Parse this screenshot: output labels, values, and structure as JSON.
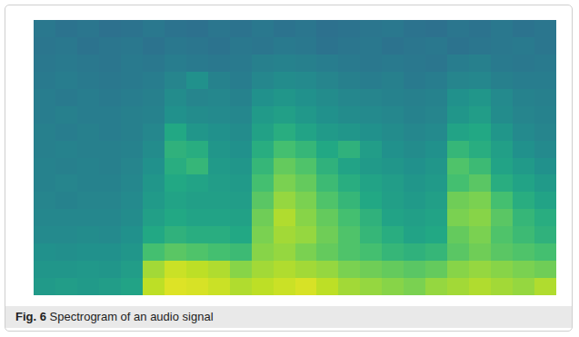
{
  "chart_data": {
    "type": "heatmap",
    "figure_label": "Fig. 6",
    "title": "Spectrogram of an audio signal",
    "tick_labels": false,
    "zlim": [
      0,
      1
    ],
    "cells": [
      [
        0.4,
        0.38,
        0.39,
        0.37,
        0.38,
        0.4,
        0.38,
        0.37,
        0.39,
        0.38,
        0.4,
        0.38,
        0.39,
        0.37,
        0.38,
        0.39,
        0.4,
        0.38,
        0.37,
        0.39,
        0.38,
        0.4,
        0.38,
        0.39
      ],
      [
        0.39,
        0.4,
        0.38,
        0.39,
        0.4,
        0.38,
        0.4,
        0.39,
        0.38,
        0.4,
        0.39,
        0.41,
        0.4,
        0.38,
        0.39,
        0.4,
        0.38,
        0.39,
        0.4,
        0.38,
        0.39,
        0.4,
        0.41,
        0.39
      ],
      [
        0.4,
        0.41,
        0.4,
        0.39,
        0.41,
        0.4,
        0.42,
        0.41,
        0.4,
        0.41,
        0.43,
        0.44,
        0.43,
        0.42,
        0.41,
        0.4,
        0.41,
        0.4,
        0.39,
        0.42,
        0.43,
        0.41,
        0.4,
        0.41
      ],
      [
        0.41,
        0.42,
        0.41,
        0.4,
        0.41,
        0.42,
        0.45,
        0.5,
        0.44,
        0.42,
        0.46,
        0.48,
        0.47,
        0.45,
        0.43,
        0.42,
        0.43,
        0.41,
        0.42,
        0.45,
        0.46,
        0.43,
        0.42,
        0.42
      ],
      [
        0.42,
        0.41,
        0.42,
        0.41,
        0.42,
        0.43,
        0.48,
        0.45,
        0.46,
        0.44,
        0.5,
        0.52,
        0.5,
        0.48,
        0.46,
        0.45,
        0.44,
        0.43,
        0.44,
        0.5,
        0.52,
        0.47,
        0.44,
        0.43
      ],
      [
        0.42,
        0.43,
        0.42,
        0.42,
        0.43,
        0.44,
        0.5,
        0.48,
        0.47,
        0.46,
        0.54,
        0.56,
        0.53,
        0.5,
        0.48,
        0.47,
        0.46,
        0.44,
        0.45,
        0.52,
        0.55,
        0.48,
        0.45,
        0.44
      ],
      [
        0.43,
        0.42,
        0.43,
        0.42,
        0.43,
        0.46,
        0.6,
        0.52,
        0.5,
        0.48,
        0.57,
        0.62,
        0.58,
        0.54,
        0.52,
        0.5,
        0.48,
        0.46,
        0.47,
        0.58,
        0.6,
        0.52,
        0.47,
        0.45
      ],
      [
        0.43,
        0.44,
        0.43,
        0.43,
        0.44,
        0.48,
        0.64,
        0.62,
        0.52,
        0.5,
        0.62,
        0.7,
        0.66,
        0.6,
        0.64,
        0.55,
        0.5,
        0.48,
        0.5,
        0.66,
        0.62,
        0.56,
        0.5,
        0.47
      ],
      [
        0.44,
        0.43,
        0.44,
        0.43,
        0.45,
        0.5,
        0.62,
        0.66,
        0.54,
        0.52,
        0.66,
        0.76,
        0.72,
        0.64,
        0.58,
        0.54,
        0.52,
        0.5,
        0.52,
        0.72,
        0.68,
        0.58,
        0.54,
        0.5
      ],
      [
        0.44,
        0.45,
        0.44,
        0.44,
        0.46,
        0.52,
        0.6,
        0.58,
        0.55,
        0.54,
        0.7,
        0.8,
        0.76,
        0.68,
        0.62,
        0.58,
        0.55,
        0.52,
        0.54,
        0.7,
        0.74,
        0.62,
        0.58,
        0.54
      ],
      [
        0.45,
        0.44,
        0.45,
        0.45,
        0.47,
        0.54,
        0.58,
        0.56,
        0.56,
        0.55,
        0.74,
        0.84,
        0.8,
        0.72,
        0.66,
        0.6,
        0.56,
        0.54,
        0.56,
        0.78,
        0.8,
        0.7,
        0.62,
        0.58
      ],
      [
        0.46,
        0.46,
        0.46,
        0.46,
        0.48,
        0.56,
        0.6,
        0.58,
        0.58,
        0.57,
        0.78,
        0.88,
        0.82,
        0.76,
        0.7,
        0.64,
        0.58,
        0.56,
        0.58,
        0.8,
        0.82,
        0.74,
        0.66,
        0.62
      ],
      [
        0.47,
        0.47,
        0.48,
        0.47,
        0.5,
        0.6,
        0.64,
        0.62,
        0.62,
        0.6,
        0.8,
        0.86,
        0.84,
        0.78,
        0.72,
        0.66,
        0.62,
        0.58,
        0.6,
        0.76,
        0.8,
        0.72,
        0.68,
        0.64
      ],
      [
        0.5,
        0.49,
        0.5,
        0.5,
        0.52,
        0.7,
        0.74,
        0.72,
        0.7,
        0.68,
        0.82,
        0.84,
        0.8,
        0.76,
        0.72,
        0.7,
        0.66,
        0.64,
        0.66,
        0.74,
        0.78,
        0.74,
        0.72,
        0.7
      ],
      [
        0.52,
        0.52,
        0.53,
        0.52,
        0.55,
        0.86,
        0.92,
        0.9,
        0.88,
        0.82,
        0.86,
        0.88,
        0.86,
        0.84,
        0.8,
        0.78,
        0.76,
        0.74,
        0.76,
        0.82,
        0.84,
        0.82,
        0.8,
        0.78
      ],
      [
        0.54,
        0.55,
        0.54,
        0.55,
        0.58,
        0.9,
        0.95,
        0.94,
        0.92,
        0.88,
        0.9,
        0.92,
        0.94,
        0.9,
        0.86,
        0.84,
        0.82,
        0.8,
        0.84,
        0.86,
        0.88,
        0.86,
        0.84,
        0.88
      ]
    ]
  }
}
